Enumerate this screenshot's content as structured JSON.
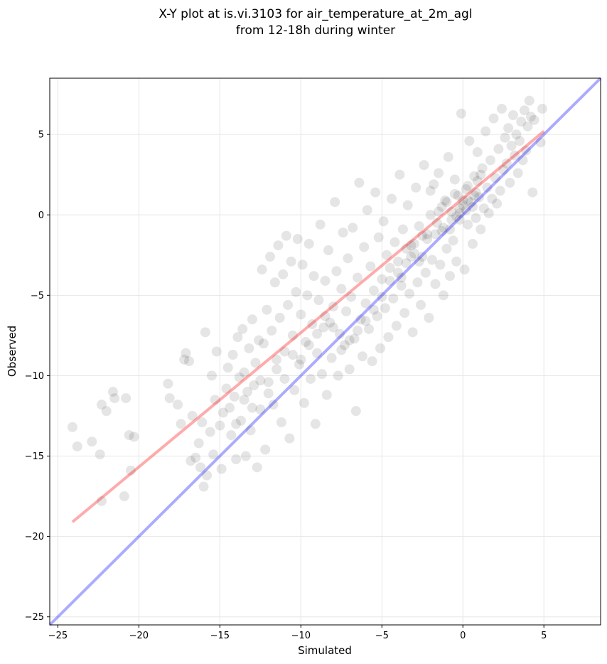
{
  "chart_data": {
    "type": "scatter",
    "title_line1": "X-Y plot at is.vi.3103 for air_temperature_at_2m_agl",
    "title_line2": "from 12-18h during winter",
    "xlabel": "Simulated",
    "ylabel": "Observed",
    "xlim": [
      -25.5,
      8.5
    ],
    "ylim": [
      -25.5,
      8.5
    ],
    "xticks": [
      -25,
      -20,
      -15,
      -10,
      -5,
      0,
      5
    ],
    "yticks": [
      -25,
      -20,
      -15,
      -10,
      -5,
      0,
      5
    ],
    "xtick_labels": [
      "−25",
      "−20",
      "−15",
      "−10",
      "−5",
      "0",
      "5"
    ],
    "ytick_labels": [
      "−25",
      "−20",
      "−15",
      "−10",
      "−5",
      "0",
      "5"
    ],
    "grid": true,
    "point_color": "#000000",
    "point_opacity": 0.1,
    "identity_line": {
      "x": [
        -25.5,
        8.5
      ],
      "y": [
        -25.5,
        8.5
      ],
      "color": "#0000ff"
    },
    "fit_line": {
      "x": [
        -24.1,
        5.0
      ],
      "y": [
        -19.1,
        5.2
      ],
      "color": "#ff0000"
    },
    "points": [
      [
        -24.1,
        -13.2
      ],
      [
        -23.8,
        -14.4
      ],
      [
        -22.9,
        -14.1
      ],
      [
        -22.4,
        -14.9
      ],
      [
        -22.3,
        -17.8
      ],
      [
        -22.3,
        -11.8
      ],
      [
        -22.0,
        -12.2
      ],
      [
        -21.6,
        -11.0
      ],
      [
        -21.5,
        -11.4
      ],
      [
        -20.9,
        -17.5
      ],
      [
        -20.8,
        -11.4
      ],
      [
        -20.6,
        -13.7
      ],
      [
        -20.5,
        -15.9
      ],
      [
        -20.3,
        -13.8
      ],
      [
        -18.2,
        -10.5
      ],
      [
        -18.1,
        -11.4
      ],
      [
        -17.6,
        -11.8
      ],
      [
        -17.4,
        -13.0
      ],
      [
        -17.2,
        -9.0
      ],
      [
        -17.1,
        -8.6
      ],
      [
        -16.9,
        -9.1
      ],
      [
        -16.8,
        -15.3
      ],
      [
        -16.7,
        -12.5
      ],
      [
        -16.5,
        -15.1
      ],
      [
        -16.3,
        -14.2
      ],
      [
        -16.2,
        -15.7
      ],
      [
        -16.1,
        -12.9
      ],
      [
        -16.0,
        -16.9
      ],
      [
        -15.9,
        -7.3
      ],
      [
        -15.8,
        -16.2
      ],
      [
        -15.6,
        -13.5
      ],
      [
        -15.5,
        -10.0
      ],
      [
        -15.4,
        -14.9
      ],
      [
        -15.3,
        -11.5
      ],
      [
        -15.2,
        -8.5
      ],
      [
        -15.0,
        -13.1
      ],
      [
        -14.9,
        -15.8
      ],
      [
        -14.8,
        -12.3
      ],
      [
        -14.6,
        -10.8
      ],
      [
        -14.5,
        -9.5
      ],
      [
        -14.4,
        -12.0
      ],
      [
        -14.3,
        -13.7
      ],
      [
        -14.2,
        -8.7
      ],
      [
        -14.1,
        -11.3
      ],
      [
        -14.0,
        -15.2
      ],
      [
        -13.9,
        -7.6
      ],
      [
        -13.8,
        -10.1
      ],
      [
        -13.7,
        -12.8
      ],
      [
        -13.6,
        -7.1
      ],
      [
        -13.5,
        -9.8
      ],
      [
        -13.4,
        -15.0
      ],
      [
        -13.3,
        -11.0
      ],
      [
        -13.2,
        -8.3
      ],
      [
        -13.1,
        -13.4
      ],
      [
        -13.0,
        -6.5
      ],
      [
        -12.9,
        -10.6
      ],
      [
        -12.8,
        -9.2
      ],
      [
        -12.7,
        -15.7
      ],
      [
        -12.6,
        -7.8
      ],
      [
        -12.5,
        -12.1
      ],
      [
        -12.4,
        -3.4
      ],
      [
        -12.3,
        -8.0
      ],
      [
        -12.2,
        -14.6
      ],
      [
        -12.1,
        -5.9
      ],
      [
        -12.0,
        -10.4
      ],
      [
        -11.9,
        -2.6
      ],
      [
        -11.8,
        -7.2
      ],
      [
        -11.7,
        -11.8
      ],
      [
        -11.6,
        -4.2
      ],
      [
        -11.5,
        -9.0
      ],
      [
        -11.4,
        -1.9
      ],
      [
        -11.3,
        -6.4
      ],
      [
        -11.2,
        -12.9
      ],
      [
        -11.1,
        -3.7
      ],
      [
        -11.0,
        -8.5
      ],
      [
        -10.9,
        -1.3
      ],
      [
        -10.8,
        -5.6
      ],
      [
        -10.7,
        -13.9
      ],
      [
        -10.6,
        -2.9
      ],
      [
        -10.5,
        -7.5
      ],
      [
        -10.4,
        -10.9
      ],
      [
        -10.3,
        -4.8
      ],
      [
        -10.2,
        -1.5
      ],
      [
        -10.1,
        -9.3
      ],
      [
        -10.0,
        -6.2
      ],
      [
        -9.9,
        -3.1
      ],
      [
        -9.8,
        -11.7
      ],
      [
        -9.7,
        -7.9
      ],
      [
        -9.6,
        -5.0
      ],
      [
        -9.5,
        -1.8
      ],
      [
        -9.4,
        -10.2
      ],
      [
        -9.3,
        -6.8
      ],
      [
        -9.2,
        -3.8
      ],
      [
        -9.1,
        -13.0
      ],
      [
        -9.0,
        -8.6
      ],
      [
        -8.9,
        -5.3
      ],
      [
        -8.8,
        -0.6
      ],
      [
        -8.7,
        -9.9
      ],
      [
        -8.6,
        -7.0
      ],
      [
        -8.5,
        -4.1
      ],
      [
        -8.4,
        -11.2
      ],
      [
        -8.3,
        -2.2
      ],
      [
        -8.2,
        -6.7
      ],
      [
        -8.1,
        -8.9
      ],
      [
        -8.0,
        -5.7
      ],
      [
        -7.9,
        0.8
      ],
      [
        -7.8,
        -3.5
      ],
      [
        -7.7,
        -10.0
      ],
      [
        -7.6,
        -7.4
      ],
      [
        -7.5,
        -4.6
      ],
      [
        -7.4,
        -1.1
      ],
      [
        -7.3,
        -8.1
      ],
      [
        -7.2,
        -6.0
      ],
      [
        -7.1,
        -2.7
      ],
      [
        -7.0,
        -9.6
      ],
      [
        -6.9,
        -5.1
      ],
      [
        -6.8,
        -0.8
      ],
      [
        -6.7,
        -7.7
      ],
      [
        -6.6,
        -12.2
      ],
      [
        -6.5,
        -3.9
      ],
      [
        -6.4,
        2.0
      ],
      [
        -6.3,
        -6.5
      ],
      [
        -6.2,
        -8.8
      ],
      [
        -6.1,
        -2.0
      ],
      [
        -6.0,
        -5.5
      ],
      [
        -5.9,
        0.3
      ],
      [
        -5.8,
        -7.1
      ],
      [
        -5.7,
        -3.2
      ],
      [
        -5.6,
        -9.1
      ],
      [
        -5.5,
        -4.7
      ],
      [
        -5.4,
        1.4
      ],
      [
        -5.3,
        -6.3
      ],
      [
        -5.2,
        -1.4
      ],
      [
        -5.1,
        -8.3
      ],
      [
        -5.0,
        -4.0
      ],
      [
        -4.9,
        -0.4
      ],
      [
        -4.8,
        -5.8
      ],
      [
        -4.7,
        -2.5
      ],
      [
        -4.6,
        -7.6
      ],
      [
        -4.5,
        -3.3
      ],
      [
        -4.4,
        1.0
      ],
      [
        -4.3,
        -5.2
      ],
      [
        -4.2,
        -1.7
      ],
      [
        -4.1,
        -6.9
      ],
      [
        -4.0,
        -2.9
      ],
      [
        -3.9,
        2.5
      ],
      [
        -3.8,
        -4.4
      ],
      [
        -3.7,
        -0.9
      ],
      [
        -3.6,
        -6.1
      ],
      [
        -3.5,
        -3.0
      ],
      [
        -3.4,
        0.6
      ],
      [
        -3.3,
        -4.9
      ],
      [
        -3.2,
        -1.9
      ],
      [
        -3.1,
        -7.3
      ],
      [
        -3.0,
        -2.4
      ],
      [
        -2.9,
        1.7
      ],
      [
        -2.8,
        -4.2
      ],
      [
        -2.7,
        -0.7
      ],
      [
        -2.6,
        -5.6
      ],
      [
        -2.5,
        -2.6
      ],
      [
        -2.4,
        3.1
      ],
      [
        -2.3,
        -3.6
      ],
      [
        -2.2,
        -1.2
      ],
      [
        -2.1,
        -6.4
      ],
      [
        -2.0,
        0.0
      ],
      [
        -1.9,
        -2.8
      ],
      [
        -1.8,
        1.9
      ],
      [
        -1.7,
        -4.3
      ],
      [
        -1.6,
        -0.5
      ],
      [
        -1.5,
        2.6
      ],
      [
        -1.4,
        -3.1
      ],
      [
        -1.3,
        -1.0
      ],
      [
        -1.2,
        -5.0
      ],
      [
        -1.1,
        0.9
      ],
      [
        -1.0,
        -2.1
      ],
      [
        -0.9,
        3.6
      ],
      [
        -0.8,
        -3.8
      ],
      [
        -0.7,
        0.2
      ],
      [
        -0.6,
        -1.6
      ],
      [
        -0.5,
        2.2
      ],
      [
        -0.4,
        -2.9
      ],
      [
        -0.3,
        1.2
      ],
      [
        -0.2,
        -0.3
      ],
      [
        -0.1,
        6.3
      ],
      [
        0.0,
        0.6
      ],
      [
        0.1,
        -3.4
      ],
      [
        0.2,
        1.6
      ],
      [
        0.3,
        -0.6
      ],
      [
        0.4,
        4.6
      ],
      [
        0.5,
        0.8
      ],
      [
        0.6,
        -1.8
      ],
      [
        0.7,
        2.4
      ],
      [
        0.8,
        -0.2
      ],
      [
        0.9,
        3.9
      ],
      [
        1.0,
        1.1
      ],
      [
        1.1,
        -0.9
      ],
      [
        1.2,
        2.9
      ],
      [
        1.3,
        0.4
      ],
      [
        1.4,
        5.2
      ],
      [
        1.5,
        1.7
      ],
      [
        1.6,
        0.1
      ],
      [
        1.7,
        3.4
      ],
      [
        1.8,
        1.0
      ],
      [
        1.9,
        6.0
      ],
      [
        2.0,
        2.3
      ],
      [
        2.1,
        0.7
      ],
      [
        2.2,
        4.1
      ],
      [
        2.3,
        1.5
      ],
      [
        2.4,
        6.6
      ],
      [
        2.5,
        2.8
      ],
      [
        2.6,
        4.8
      ],
      [
        2.7,
        3.2
      ],
      [
        2.8,
        5.4
      ],
      [
        2.9,
        2.0
      ],
      [
        3.0,
        4.3
      ],
      [
        3.1,
        6.2
      ],
      [
        3.2,
        3.7
      ],
      [
        3.3,
        5.0
      ],
      [
        3.4,
        2.6
      ],
      [
        3.5,
        4.6
      ],
      [
        3.6,
        5.8
      ],
      [
        3.7,
        3.4
      ],
      [
        3.8,
        6.5
      ],
      [
        3.9,
        4.0
      ],
      [
        4.0,
        5.5
      ],
      [
        4.1,
        7.1
      ],
      [
        4.2,
        6.1
      ],
      [
        4.3,
        1.4
      ],
      [
        4.4,
        5.9
      ],
      [
        4.8,
        4.5
      ],
      [
        4.9,
        6.6
      ],
      [
        -2.0,
        1.5
      ],
      [
        -1.5,
        0.2
      ],
      [
        -1.0,
        0.8
      ],
      [
        -0.5,
        1.3
      ],
      [
        0.0,
        0.9
      ],
      [
        0.3,
        1.8
      ],
      [
        0.6,
        0.5
      ],
      [
        0.9,
        2.1
      ],
      [
        -0.2,
        0.4
      ],
      [
        -0.8,
        -0.9
      ],
      [
        -1.3,
        0.5
      ],
      [
        -0.4,
        -0.1
      ],
      [
        0.2,
        0.3
      ],
      [
        0.8,
        1.4
      ],
      [
        1.1,
        2.5
      ],
      [
        -2.5,
        -1.3
      ],
      [
        -3.0,
        -1.8
      ],
      [
        -3.5,
        -2.1
      ],
      [
        -4.0,
        -3.6
      ],
      [
        -4.5,
        -4.1
      ],
      [
        -5.0,
        -5.1
      ],
      [
        -5.5,
        -5.9
      ],
      [
        -6.0,
        -6.6
      ],
      [
        -6.5,
        -7.2
      ],
      [
        -7.0,
        -7.8
      ],
      [
        -7.5,
        -8.4
      ],
      [
        -8.0,
        -7.0
      ],
      [
        -8.5,
        -6.3
      ],
      [
        -9.0,
        -7.4
      ],
      [
        -9.5,
        -8.1
      ],
      [
        -10.0,
        -9.0
      ],
      [
        -10.5,
        -8.7
      ],
      [
        -11.0,
        -10.2
      ],
      [
        -11.5,
        -9.6
      ],
      [
        -12.0,
        -11.1
      ],
      [
        -12.5,
        -10.3
      ],
      [
        -13.0,
        -12.0
      ],
      [
        -13.5,
        -11.5
      ],
      [
        -14.0,
        -13.0
      ],
      [
        -3.8,
        -3.9
      ],
      [
        -3.2,
        -2.6
      ],
      [
        -2.7,
        -2.9
      ],
      [
        -2.2,
        -1.5
      ],
      [
        -1.7,
        -1.2
      ],
      [
        -1.2,
        -0.8
      ],
      [
        -0.7,
        -0.3
      ],
      [
        -0.2,
        0.1
      ],
      [
        0.3,
        0.9
      ],
      [
        0.7,
        1.2
      ]
    ]
  }
}
